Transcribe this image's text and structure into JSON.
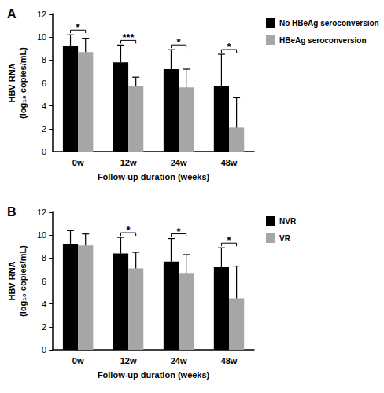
{
  "chart_data": [
    {
      "type": "bar",
      "title": "A",
      "categories": [
        "0w",
        "12w",
        "24w",
        "48w"
      ],
      "xlabel": "Follow-up duration (weeks)",
      "ylabel": "HBV RNA\n(log₁₀ copies/mL)",
      "ylim": [
        0,
        12
      ],
      "yticks": [
        0,
        2,
        4,
        6,
        8,
        10,
        12
      ],
      "grid": false,
      "legend": "right",
      "series": [
        {
          "name": "No HBeAg seroconversion",
          "color": "#000000",
          "values": [
            9.2,
            7.8,
            7.2,
            5.7
          ],
          "errors": [
            1.0,
            1.5,
            1.7,
            2.8
          ]
        },
        {
          "name": "HBeAg seroconversion",
          "color": "#a6a6a6",
          "values": [
            8.7,
            5.7,
            5.6,
            2.1
          ],
          "errors": [
            1.2,
            0.8,
            1.6,
            2.6
          ]
        }
      ],
      "significance": [
        "*",
        "***",
        "*",
        "*"
      ]
    },
    {
      "type": "bar",
      "title": "B",
      "categories": [
        "0w",
        "12w",
        "24w",
        "48w"
      ],
      "xlabel": "Follow-up duration (weeks)",
      "ylabel": "HBV RNA\n(log₁₀ copies/mL)",
      "ylim": [
        0,
        12
      ],
      "yticks": [
        0,
        2,
        4,
        6,
        8,
        10,
        12
      ],
      "grid": false,
      "legend": "right",
      "series": [
        {
          "name": "NVR",
          "color": "#000000",
          "values": [
            9.2,
            8.4,
            7.7,
            7.2
          ],
          "errors": [
            1.2,
            1.4,
            2.0,
            1.7
          ]
        },
        {
          "name": "VR",
          "color": "#a6a6a6",
          "values": [
            9.1,
            7.1,
            6.7,
            4.5
          ],
          "errors": [
            1.0,
            1.4,
            1.6,
            2.8
          ]
        }
      ],
      "significance": [
        null,
        "*",
        "*",
        "*"
      ]
    }
  ]
}
